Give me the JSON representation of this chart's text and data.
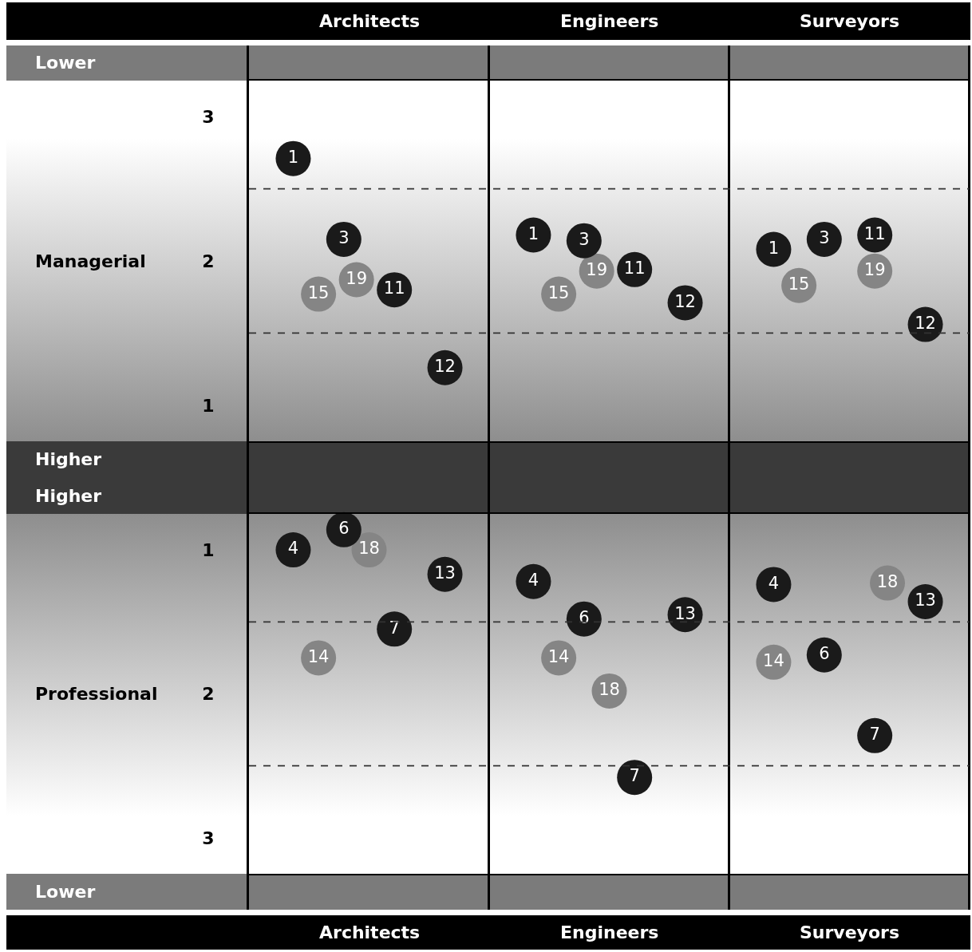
{
  "chart_data": [
    {
      "type": "scatter",
      "ylabel": "Managerial",
      "annotations": [
        "Lower",
        "Higher",
        "Architects",
        "Engineers",
        "Surveyors"
      ],
      "categories": [
        null,
        null,
        null,
        null,
        null,
        null,
        null,
        null,
        null,
        null,
        null,
        null,
        null,
        null,
        null,
        null,
        null,
        null,
        null,
        null,
        null,
        null,
        null,
        null,
        null,
        null,
        null,
        null,
        null,
        null,
        null,
        null,
        null,
        null,
        null,
        null,
        null,
        null,
        null,
        null,
        null,
        null,
        null,
        null,
        null,
        null,
        null,
        null,
        null,
        null,
        null,
        null,
        null,
        null,
        null,
        null,
        null
      ],
      "ylim": [
        0.75,
        3.25
      ],
      "yticks": [
        1,
        2,
        3
      ],
      "tick_labels": "y",
      "marker": "circle",
      "ref_lines": [
        {
          "axis": "y",
          "value": 2.5,
          "line_style": "dashed",
          "color": "#333333"
        },
        {
          "axis": "y",
          "value": 1.5,
          "line_style": "dashed",
          "color": "#333333"
        }
      ],
      "series": [
        {
          "name": "15",
          "color": "#858585",
          "values": [
            null,
            null,
            null,
            null,
            null,
            1.77,
            null,
            null,
            null,
            null,
            null,
            null,
            null,
            null,
            null,
            null,
            null,
            null,
            null,
            null,
            null,
            null,
            null,
            null,
            1.77,
            null,
            null,
            null,
            null,
            null,
            null,
            null,
            null,
            null,
            null,
            null,
            null,
            null,
            null,
            null,
            null,
            null,
            null,
            1.83,
            null,
            null,
            null,
            null,
            null,
            null,
            null,
            null,
            null,
            null,
            null,
            null,
            null
          ]
        },
        {
          "name": "19",
          "color": "#858585",
          "values": [
            null,
            null,
            null,
            null,
            null,
            null,
            null,
            null,
            1.87,
            null,
            null,
            null,
            null,
            null,
            null,
            null,
            null,
            null,
            null,
            null,
            null,
            null,
            null,
            null,
            null,
            null,
            null,
            1.93,
            null,
            null,
            null,
            null,
            null,
            null,
            null,
            null,
            null,
            null,
            null,
            null,
            null,
            null,
            null,
            null,
            null,
            null,
            null,
            null,
            null,
            1.93,
            null,
            null,
            null,
            null,
            null,
            null,
            null
          ]
        },
        {
          "name": "1",
          "color": "#1a1a1a",
          "values": [
            null,
            null,
            null,
            2.71,
            null,
            null,
            null,
            null,
            null,
            null,
            null,
            null,
            null,
            null,
            null,
            null,
            null,
            null,
            null,
            null,
            null,
            null,
            2.18,
            null,
            null,
            null,
            null,
            null,
            null,
            null,
            null,
            null,
            null,
            null,
            null,
            null,
            null,
            null,
            null,
            null,
            null,
            2.08,
            null,
            null,
            null,
            null,
            null,
            null,
            null,
            null,
            null,
            null,
            null,
            null,
            null,
            null,
            null
          ]
        },
        {
          "name": "3",
          "color": "#1a1a1a",
          "values": [
            null,
            null,
            null,
            null,
            null,
            null,
            null,
            2.15,
            null,
            null,
            null,
            null,
            null,
            null,
            null,
            null,
            null,
            null,
            null,
            null,
            null,
            null,
            null,
            null,
            null,
            null,
            2.14,
            null,
            null,
            null,
            null,
            null,
            null,
            null,
            null,
            null,
            null,
            null,
            null,
            null,
            null,
            null,
            null,
            null,
            null,
            2.15,
            null,
            null,
            null,
            null,
            null,
            null,
            null,
            null,
            null,
            null,
            null
          ]
        },
        {
          "name": "11",
          "color": "#1a1a1a",
          "values": [
            null,
            null,
            null,
            null,
            null,
            null,
            null,
            null,
            null,
            null,
            null,
            1.8,
            null,
            null,
            null,
            null,
            null,
            null,
            null,
            null,
            null,
            null,
            null,
            null,
            null,
            null,
            null,
            null,
            null,
            null,
            1.94,
            null,
            null,
            null,
            null,
            null,
            null,
            null,
            null,
            null,
            null,
            null,
            null,
            null,
            null,
            null,
            null,
            null,
            null,
            2.18,
            null,
            null,
            null,
            null,
            null,
            null,
            null
          ]
        },
        {
          "name": "12",
          "color": "#1a1a1a",
          "values": [
            null,
            null,
            null,
            null,
            null,
            null,
            null,
            null,
            null,
            null,
            null,
            null,
            null,
            null,
            null,
            1.26,
            null,
            null,
            null,
            null,
            null,
            null,
            null,
            null,
            null,
            null,
            null,
            null,
            null,
            null,
            null,
            null,
            null,
            null,
            1.71,
            null,
            null,
            null,
            null,
            null,
            null,
            null,
            null,
            null,
            null,
            null,
            null,
            null,
            null,
            null,
            null,
            null,
            null,
            1.56,
            null,
            null,
            null
          ]
        }
      ]
    },
    {
      "type": "scatter",
      "ylabel": "Professional",
      "annotations": [
        "Higher",
        "Lower",
        "Architects",
        "Engineers",
        "Surveyors"
      ],
      "categories": [
        null,
        null,
        null,
        null,
        null,
        null,
        null,
        null,
        null,
        null,
        null,
        null,
        null,
        null,
        null,
        null,
        null,
        null,
        null,
        null,
        null,
        null,
        null,
        null,
        null,
        null,
        null,
        null,
        null,
        null,
        null,
        null,
        null,
        null,
        null,
        null,
        null,
        null,
        null,
        null,
        null,
        null,
        null,
        null,
        null,
        null,
        null,
        null,
        null,
        null,
        null,
        null,
        null,
        null,
        null,
        null,
        null
      ],
      "ylim": [
        3.25,
        0.75
      ],
      "yticks": [
        1,
        2,
        3
      ],
      "tick_labels": "y",
      "marker": "circle",
      "ref_lines": [
        {
          "axis": "y",
          "value": 1.5,
          "line_style": "dashed",
          "color": "#333333"
        },
        {
          "axis": "y",
          "value": 2.5,
          "line_style": "dashed",
          "color": "#333333"
        }
      ],
      "series": [
        {
          "name": "14",
          "color": "#858585",
          "values": [
            null,
            null,
            null,
            null,
            null,
            1.75,
            null,
            null,
            null,
            null,
            null,
            null,
            null,
            null,
            null,
            null,
            null,
            null,
            null,
            null,
            null,
            null,
            null,
            null,
            1.75,
            null,
            null,
            null,
            null,
            null,
            null,
            null,
            null,
            null,
            null,
            null,
            null,
            null,
            null,
            null,
            null,
            1.78,
            null,
            null,
            null,
            null,
            null,
            null,
            null,
            null,
            null,
            null,
            null,
            null,
            null,
            null,
            null
          ]
        },
        {
          "name": "18",
          "color": "#858585",
          "values": [
            null,
            null,
            null,
            null,
            null,
            null,
            null,
            null,
            null,
            1.0,
            null,
            null,
            null,
            null,
            null,
            null,
            null,
            null,
            null,
            null,
            null,
            null,
            null,
            null,
            null,
            null,
            null,
            null,
            1.98,
            null,
            null,
            null,
            null,
            null,
            null,
            null,
            null,
            null,
            null,
            null,
            null,
            null,
            null,
            null,
            null,
            null,
            null,
            null,
            null,
            null,
            1.23,
            null,
            null,
            null,
            null,
            null,
            null
          ]
        },
        {
          "name": "4",
          "color": "#1a1a1a",
          "values": [
            null,
            null,
            null,
            1.0,
            null,
            null,
            null,
            null,
            null,
            null,
            null,
            null,
            null,
            null,
            null,
            null,
            null,
            null,
            null,
            null,
            null,
            null,
            1.22,
            null,
            null,
            null,
            null,
            null,
            null,
            null,
            null,
            null,
            null,
            null,
            null,
            null,
            null,
            null,
            null,
            null,
            null,
            1.24,
            null,
            null,
            null,
            null,
            null,
            null,
            null,
            null,
            null,
            null,
            null,
            null,
            null,
            null,
            null
          ]
        },
        {
          "name": "6",
          "color": "#1a1a1a",
          "values": [
            null,
            null,
            null,
            null,
            null,
            null,
            null,
            0.86,
            null,
            null,
            null,
            null,
            null,
            null,
            null,
            null,
            null,
            null,
            null,
            null,
            null,
            null,
            null,
            null,
            null,
            null,
            1.48,
            null,
            null,
            null,
            null,
            null,
            null,
            null,
            null,
            null,
            null,
            null,
            null,
            null,
            null,
            null,
            null,
            null,
            null,
            1.73,
            null,
            null,
            null,
            null,
            null,
            null,
            null,
            null,
            null,
            null,
            null
          ]
        },
        {
          "name": "7",
          "color": "#1a1a1a",
          "values": [
            null,
            null,
            null,
            null,
            null,
            null,
            null,
            null,
            null,
            null,
            null,
            1.55,
            null,
            null,
            null,
            null,
            null,
            null,
            null,
            null,
            null,
            null,
            null,
            null,
            null,
            null,
            null,
            null,
            null,
            null,
            2.58,
            null,
            null,
            null,
            null,
            null,
            null,
            null,
            null,
            null,
            null,
            null,
            null,
            null,
            null,
            null,
            null,
            null,
            null,
            2.29,
            null,
            null,
            null,
            null,
            null,
            null,
            null
          ]
        },
        {
          "name": "13",
          "color": "#1a1a1a",
          "values": [
            null,
            null,
            null,
            null,
            null,
            null,
            null,
            null,
            null,
            null,
            null,
            null,
            null,
            null,
            null,
            1.17,
            null,
            null,
            null,
            null,
            null,
            null,
            null,
            null,
            null,
            null,
            null,
            null,
            null,
            null,
            null,
            null,
            null,
            null,
            1.45,
            null,
            null,
            null,
            null,
            null,
            null,
            null,
            null,
            null,
            null,
            null,
            null,
            null,
            null,
            null,
            null,
            null,
            null,
            1.36,
            null,
            null,
            null
          ]
        }
      ]
    }
  ]
}
